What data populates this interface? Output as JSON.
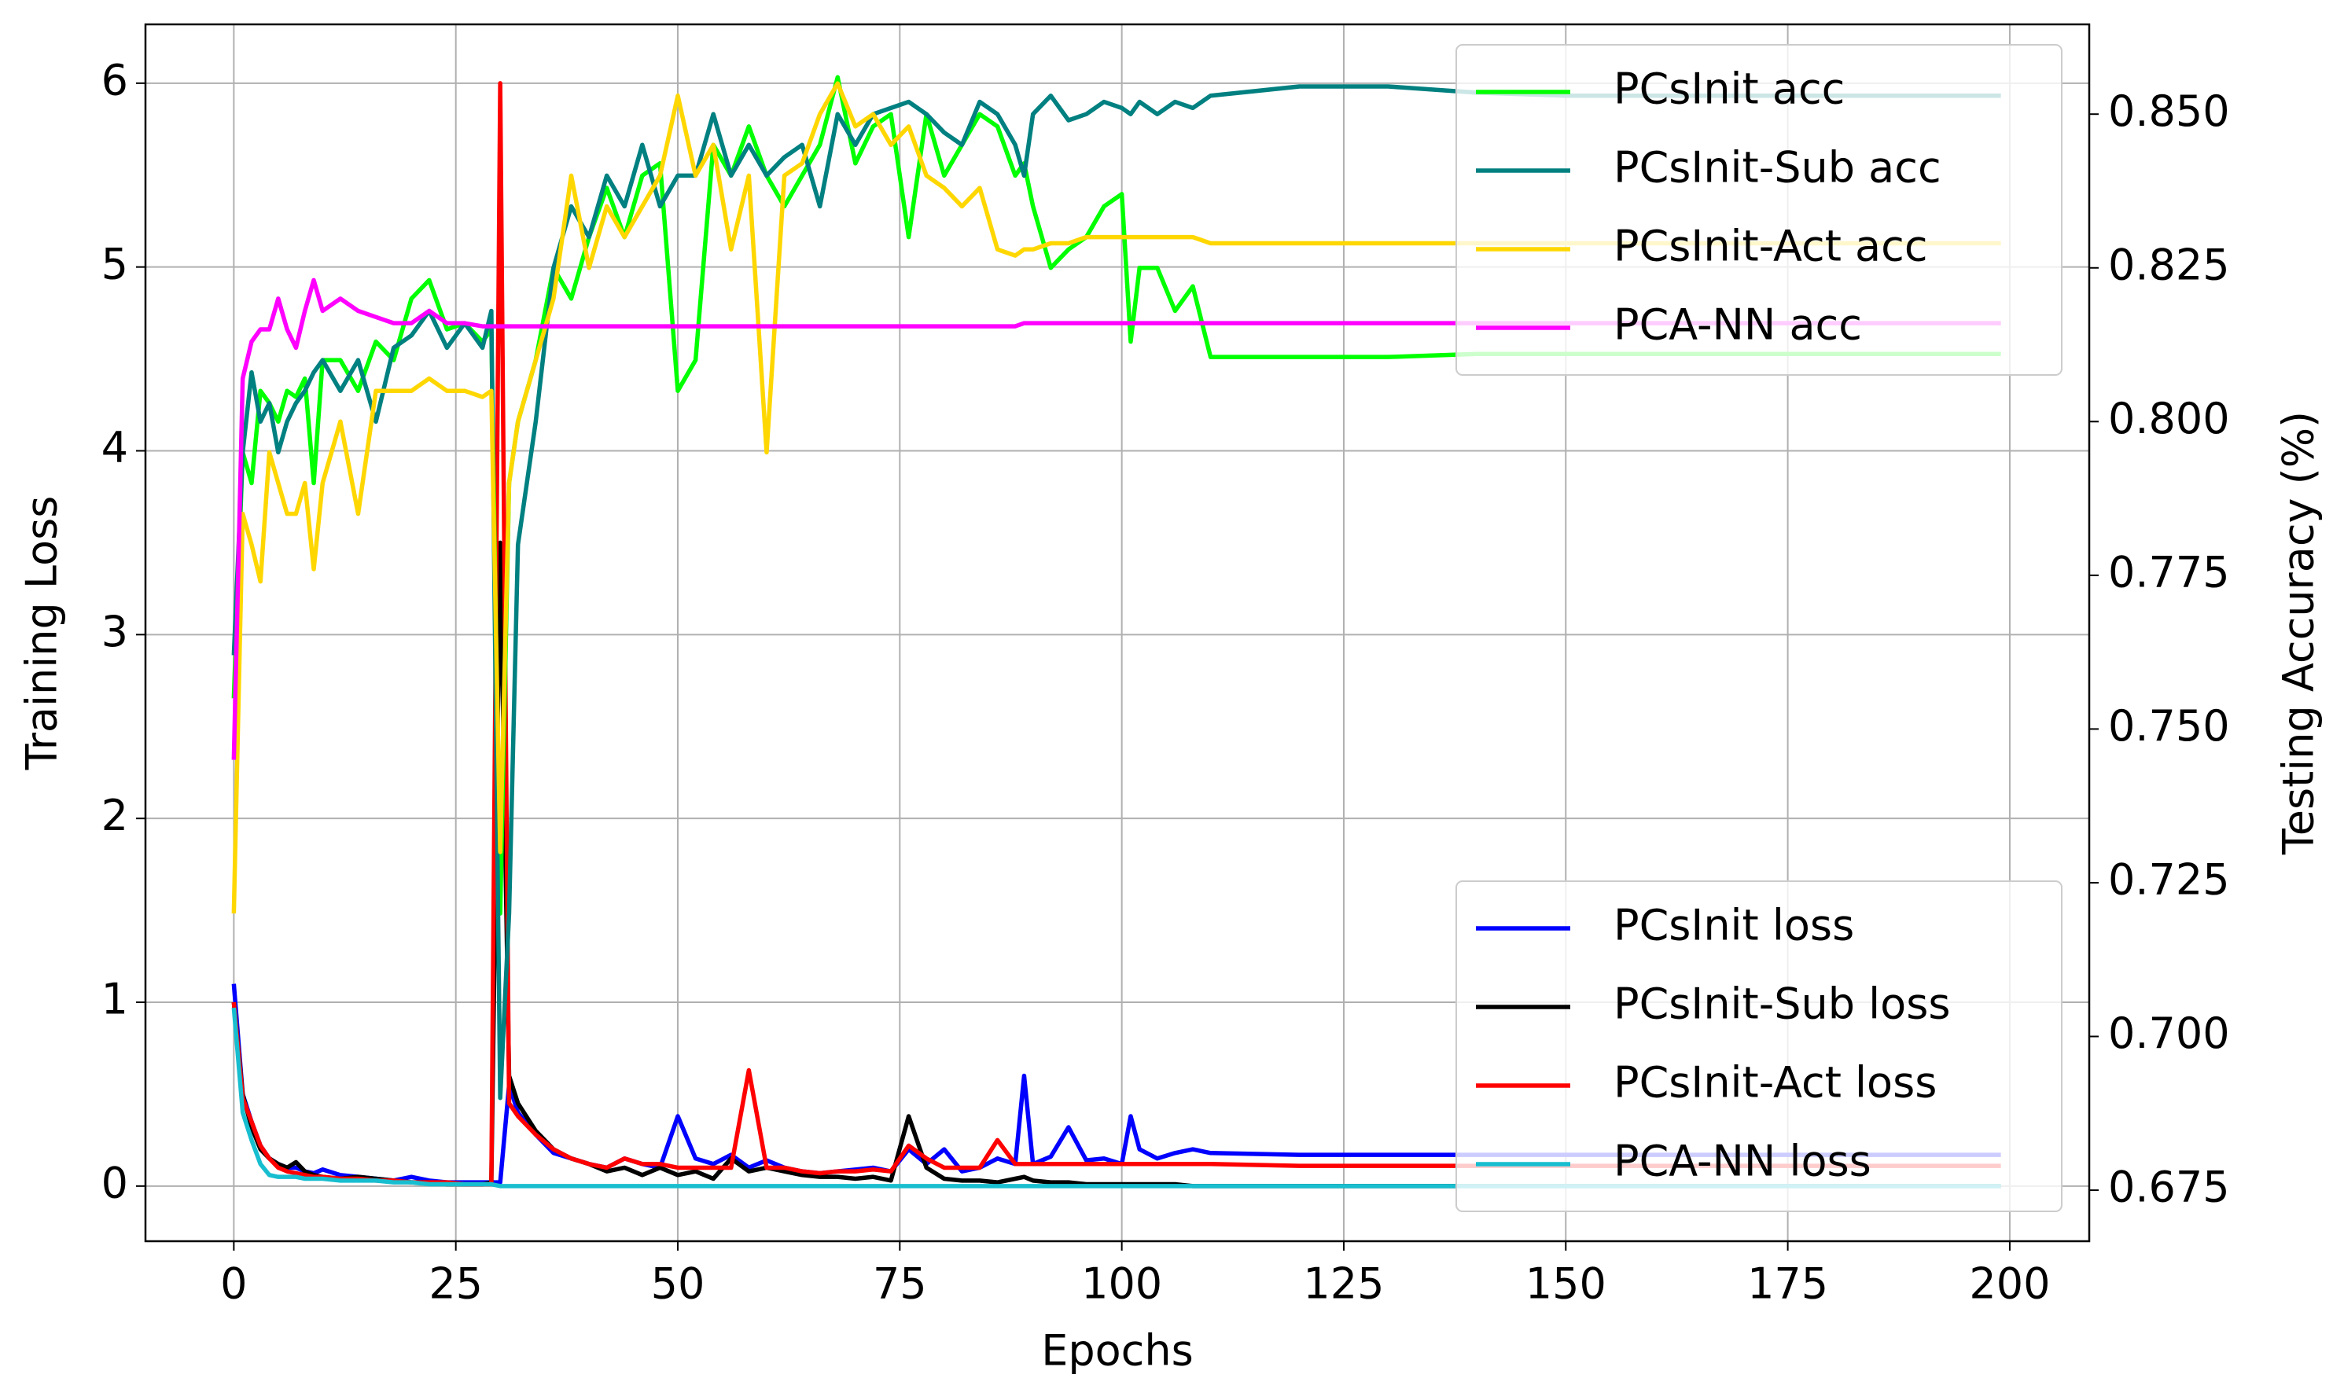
{
  "chart_data": {
    "type": "line",
    "xlabel": "Epochs",
    "ylabel": "Training Loss",
    "y2label": "Testing Accuracy (%)",
    "grid": true,
    "legend_y": "lower right",
    "legend_y2": "upper right",
    "xlim": [
      -9.95,
      208.95
    ],
    "xticks": [
      0,
      25,
      50,
      75,
      100,
      125,
      150,
      175,
      200
    ],
    "ylim": [
      -0.3,
      6.32
    ],
    "yticks": [
      0,
      1,
      2,
      3,
      4,
      5,
      6
    ],
    "y2lim": [
      0.6667,
      0.8646
    ],
    "y2ticks": [
      0.675,
      {
        "value": 0.7,
        "label": "0.700"
      },
      0.725,
      {
        "value": 0.75,
        "label": "0.750"
      },
      0.775,
      {
        "value": 0.8,
        "label": "0.800"
      },
      0.825,
      {
        "value": 0.85,
        "label": "0.850"
      }
    ],
    "x": [
      0,
      1,
      2,
      3,
      4,
      5,
      6,
      7,
      8,
      9,
      10,
      12,
      14,
      16,
      18,
      20,
      22,
      24,
      26,
      28,
      29,
      30,
      31,
      32,
      34,
      36,
      38,
      40,
      42,
      44,
      46,
      48,
      50,
      52,
      54,
      56,
      58,
      60,
      62,
      64,
      66,
      68,
      70,
      72,
      74,
      76,
      78,
      80,
      82,
      84,
      86,
      88,
      89,
      90,
      92,
      94,
      96,
      98,
      100,
      101,
      102,
      104,
      106,
      108,
      110,
      120,
      130,
      140,
      150,
      160,
      170,
      180,
      190,
      199
    ],
    "series": [
      {
        "name": "PCsInit loss",
        "color": "#0000ff",
        "axis": "y",
        "values": [
          1.1,
          0.5,
          0.35,
          0.22,
          0.15,
          0.12,
          0.1,
          0.1,
          0.08,
          0.07,
          0.09,
          0.06,
          0.05,
          0.04,
          0.03,
          0.05,
          0.03,
          0.02,
          0.02,
          0.02,
          0.02,
          0.02,
          0.55,
          0.4,
          0.28,
          0.18,
          0.15,
          0.12,
          0.1,
          0.15,
          0.12,
          0.1,
          0.38,
          0.15,
          0.12,
          0.17,
          0.1,
          0.14,
          0.1,
          0.08,
          0.07,
          0.08,
          0.09,
          0.1,
          0.08,
          0.2,
          0.12,
          0.2,
          0.08,
          0.1,
          0.15,
          0.12,
          0.6,
          0.12,
          0.16,
          0.32,
          0.14,
          0.15,
          0.12,
          0.38,
          0.2,
          0.15,
          0.18,
          0.2,
          0.18,
          0.17,
          0.17,
          0.17,
          0.17,
          0.17,
          0.17,
          0.17,
          0.17,
          0.17
        ]
      },
      {
        "name": "PCsInit-Sub loss",
        "color": "#000000",
        "axis": "y",
        "values": [
          1.0,
          0.5,
          0.32,
          0.2,
          0.15,
          0.12,
          0.1,
          0.13,
          0.08,
          0.06,
          0.05,
          0.04,
          0.05,
          0.04,
          0.03,
          0.02,
          0.02,
          0.01,
          0.01,
          0.01,
          0.02,
          3.5,
          0.6,
          0.45,
          0.3,
          0.2,
          0.15,
          0.12,
          0.08,
          0.1,
          0.06,
          0.1,
          0.06,
          0.08,
          0.04,
          0.15,
          0.08,
          0.1,
          0.08,
          0.06,
          0.05,
          0.05,
          0.04,
          0.05,
          0.03,
          0.38,
          0.1,
          0.04,
          0.03,
          0.03,
          0.02,
          0.04,
          0.05,
          0.03,
          0.02,
          0.02,
          0.01,
          0.01,
          0.01,
          0.01,
          0.01,
          0.01,
          0.01,
          0.0,
          0.0,
          0,
          0,
          0,
          0,
          0,
          0,
          0,
          0,
          0
        ]
      },
      {
        "name": "PCsInit-Act loss",
        "color": "#ff0000",
        "axis": "y",
        "values": [
          1.0,
          0.48,
          0.35,
          0.22,
          0.15,
          0.1,
          0.08,
          0.07,
          0.06,
          0.05,
          0.05,
          0.04,
          0.04,
          0.03,
          0.03,
          0.02,
          0.02,
          0.02,
          0.01,
          0.01,
          0.01,
          6.0,
          0.45,
          0.38,
          0.28,
          0.2,
          0.15,
          0.12,
          0.1,
          0.15,
          0.12,
          0.12,
          0.1,
          0.1,
          0.1,
          0.1,
          0.63,
          0.1,
          0.1,
          0.08,
          0.07,
          0.08,
          0.08,
          0.09,
          0.08,
          0.22,
          0.15,
          0.1,
          0.1,
          0.1,
          0.25,
          0.12,
          0.12,
          0.12,
          0.12,
          0.12,
          0.12,
          0.12,
          0.12,
          0.12,
          0.12,
          0.12,
          0.12,
          0.12,
          0.12,
          0.11,
          0.11,
          0.11,
          0.11,
          0.11,
          0.11,
          0.11,
          0.11,
          0.11
        ]
      },
      {
        "name": "PCA-NN loss",
        "color": "#17becf",
        "axis": "y",
        "values": [
          0.97,
          0.4,
          0.25,
          0.12,
          0.06,
          0.05,
          0.05,
          0.05,
          0.04,
          0.04,
          0.04,
          0.03,
          0.03,
          0.03,
          0.02,
          0.02,
          0.01,
          0.01,
          0.01,
          0.01,
          0.01,
          0.0,
          0.0,
          0,
          0,
          0,
          0,
          0,
          0,
          0,
          0,
          0,
          0,
          0,
          0,
          0,
          0,
          0,
          0,
          0,
          0,
          0,
          0,
          0,
          0,
          0,
          0,
          0,
          0,
          0,
          0,
          0,
          0,
          0,
          0,
          0,
          0,
          0,
          0,
          0,
          0,
          0,
          0,
          0,
          0,
          0,
          0,
          0,
          0,
          0,
          0,
          0,
          0,
          0
        ]
      },
      {
        "name": "PCsInit acc",
        "color": "#00ff00",
        "axis": "y2",
        "values": [
          0.755,
          0.795,
          0.79,
          0.805,
          0.803,
          0.8,
          0.805,
          0.804,
          0.807,
          0.79,
          0.81,
          0.81,
          0.805,
          0.813,
          0.81,
          0.82,
          0.823,
          0.815,
          0.816,
          0.813,
          0.815,
          0.72,
          0.79,
          0.8,
          0.81,
          0.825,
          0.82,
          0.83,
          0.838,
          0.83,
          0.84,
          0.842,
          0.805,
          0.81,
          0.845,
          0.84,
          0.848,
          0.84,
          0.835,
          0.84,
          0.845,
          0.856,
          0.842,
          0.848,
          0.85,
          0.83,
          0.85,
          0.84,
          0.845,
          0.85,
          0.848,
          0.84,
          0.842,
          0.835,
          0.825,
          0.828,
          0.83,
          0.835,
          0.837,
          0.813,
          0.825,
          0.825,
          0.818,
          0.822,
          0.8105,
          0.8105,
          0.8105,
          0.811,
          0.811,
          0.811,
          0.811,
          0.811,
          0.811,
          0.811
        ]
      },
      {
        "name": "PCsInit-Sub acc",
        "color": "#008080",
        "axis": "y2",
        "values": [
          0.762,
          0.795,
          0.808,
          0.8,
          0.803,
          0.795,
          0.8,
          0.803,
          0.805,
          0.808,
          0.81,
          0.805,
          0.81,
          0.8,
          0.812,
          0.814,
          0.818,
          0.812,
          0.816,
          0.812,
          0.818,
          0.69,
          0.72,
          0.78,
          0.8,
          0.825,
          0.835,
          0.83,
          0.84,
          0.835,
          0.845,
          0.835,
          0.84,
          0.84,
          0.85,
          0.84,
          0.845,
          0.84,
          0.843,
          0.845,
          0.835,
          0.85,
          0.845,
          0.85,
          0.851,
          0.852,
          0.85,
          0.847,
          0.845,
          0.852,
          0.85,
          0.845,
          0.84,
          0.85,
          0.853,
          0.849,
          0.85,
          0.852,
          0.851,
          0.85,
          0.852,
          0.85,
          0.852,
          0.851,
          0.853,
          0.8545,
          0.8545,
          0.8535,
          0.853,
          0.853,
          0.853,
          0.853,
          0.853,
          0.853
        ]
      },
      {
        "name": "PCsInit-Act acc",
        "color": "#ffd700",
        "axis": "y2",
        "values": [
          0.72,
          0.785,
          0.78,
          0.774,
          0.795,
          0.79,
          0.785,
          0.785,
          0.79,
          0.776,
          0.79,
          0.8,
          0.785,
          0.805,
          0.805,
          0.805,
          0.807,
          0.805,
          0.805,
          0.804,
          0.805,
          0.73,
          0.79,
          0.8,
          0.81,
          0.82,
          0.84,
          0.825,
          0.835,
          0.83,
          0.835,
          0.84,
          0.853,
          0.84,
          0.845,
          0.828,
          0.84,
          0.795,
          0.84,
          0.842,
          0.85,
          0.855,
          0.848,
          0.85,
          0.845,
          0.848,
          0.84,
          0.838,
          0.835,
          0.838,
          0.828,
          0.827,
          0.828,
          0.828,
          0.829,
          0.829,
          0.83,
          0.83,
          0.83,
          0.83,
          0.83,
          0.83,
          0.83,
          0.83,
          0.829,
          0.829,
          0.829,
          0.829,
          0.829,
          0.829,
          0.829,
          0.829,
          0.829,
          0.829
        ]
      },
      {
        "name": "PCA-NN acc",
        "color": "#ff00ff",
        "axis": "y2",
        "values": [
          0.745,
          0.807,
          0.813,
          0.815,
          0.815,
          0.82,
          0.815,
          0.812,
          0.818,
          0.823,
          0.818,
          0.82,
          0.818,
          0.817,
          0.816,
          0.816,
          0.818,
          0.816,
          0.816,
          0.8155,
          0.8155,
          0.8155,
          0.8155,
          0.8155,
          0.8155,
          0.8155,
          0.8155,
          0.8155,
          0.8155,
          0.8155,
          0.8155,
          0.8155,
          0.8155,
          0.8155,
          0.8155,
          0.8155,
          0.8155,
          0.8155,
          0.8155,
          0.8155,
          0.8155,
          0.8155,
          0.8155,
          0.8155,
          0.8155,
          0.8155,
          0.8155,
          0.8155,
          0.8155,
          0.8155,
          0.8155,
          0.8155,
          0.816,
          0.816,
          0.816,
          0.816,
          0.816,
          0.816,
          0.816,
          0.816,
          0.816,
          0.816,
          0.816,
          0.816,
          0.816,
          0.816,
          0.816,
          0.816,
          0.816,
          0.816,
          0.816,
          0.816,
          0.816,
          0.816
        ]
      }
    ]
  }
}
